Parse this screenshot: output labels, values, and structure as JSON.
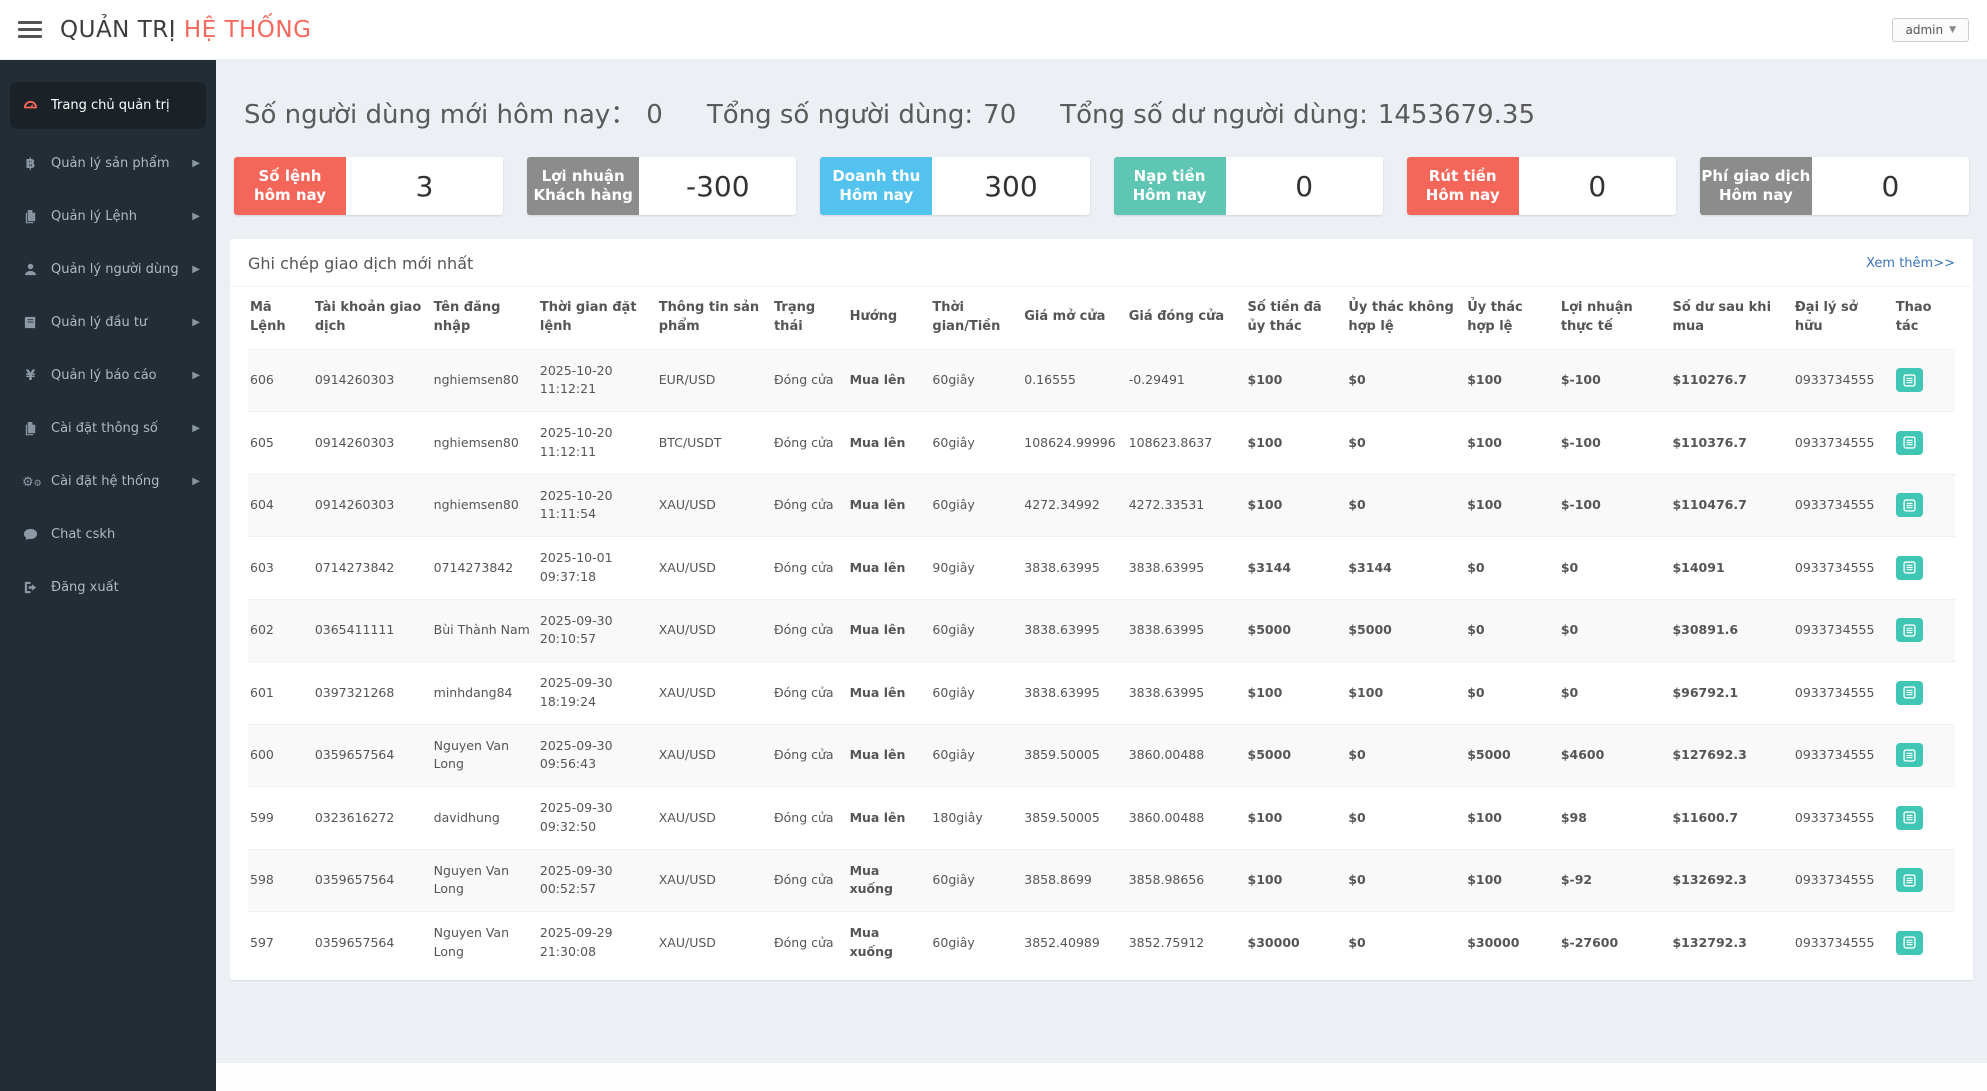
{
  "header": {
    "title_primary": "QUẢN TRỊ",
    "title_secondary": "HỆ THỐNG",
    "user_label": "admin"
  },
  "sidebar": {
    "items": [
      {
        "label": "Trang chủ quản trị",
        "icon": "dashboard-icon",
        "active": true,
        "arrow": false
      },
      {
        "label": "Quản lý sản phẩm",
        "icon": "bitcoin-icon",
        "active": false,
        "arrow": true
      },
      {
        "label": "Quản lý Lệnh",
        "icon": "files-icon",
        "active": false,
        "arrow": true
      },
      {
        "label": "Quản lý người dùng",
        "icon": "user-icon",
        "active": false,
        "arrow": true
      },
      {
        "label": "Quản lý đầu tư",
        "icon": "book-icon",
        "active": false,
        "arrow": true
      },
      {
        "label": "Quản lý báo cáo",
        "icon": "yen-icon",
        "active": false,
        "arrow": true
      },
      {
        "label": "Cài đặt thông số",
        "icon": "files-icon",
        "active": false,
        "arrow": true
      },
      {
        "label": "Cài đặt hệ thống",
        "icon": "gears-icon",
        "active": false,
        "arrow": true
      },
      {
        "label": "Chat cskh",
        "icon": "chat-icon",
        "active": false,
        "arrow": false
      },
      {
        "label": "Đăng xuất",
        "icon": "logout-icon",
        "active": false,
        "arrow": false
      }
    ]
  },
  "summary": [
    {
      "label": "Số người dùng mới hôm nay：",
      "value": "0"
    },
    {
      "label": "Tổng số người dùng:",
      "value": "70"
    },
    {
      "label": "Tổng số dư người dùng:",
      "value": "1453679.35"
    }
  ],
  "stat_cards": [
    {
      "line1": "Số lệnh",
      "line2": "hôm nay",
      "value": "3",
      "color": "#f4655a"
    },
    {
      "line1": "Lợi nhuận",
      "line2": "Khách hàng",
      "value": "-300",
      "color": "#8c8c8c"
    },
    {
      "line1": "Doanh thu",
      "line2": "Hôm nay",
      "value": "300",
      "color": "#54c2ee"
    },
    {
      "line1": "Nạp tiền",
      "line2": "Hôm nay",
      "value": "0",
      "color": "#5fc6b3"
    },
    {
      "line1": "Rút tiền",
      "line2": "Hôm nay",
      "value": "0",
      "color": "#f4655a"
    },
    {
      "line1": "Phí giao dịch",
      "line2": "Hôm nay",
      "value": "0",
      "color": "#8c8c8c"
    }
  ],
  "panel": {
    "title": "Ghi chép giao dịch mới nhất",
    "more_link": "Xem thêm>>"
  },
  "table": {
    "columns": [
      "Mã Lệnh",
      "Tài khoản giao dịch",
      "Tên đăng nhập",
      "Thời gian đặt lệnh",
      "Thông tin sản phẩm",
      "Trạng thái",
      "Hướng",
      "Thời gian/Tiền",
      "Giá mở cửa",
      "Giá đóng cửa",
      "Số tiền đã ủy thác",
      "Ủy thác không hợp lệ",
      "Ủy thác hợp lệ",
      "Lợi nhuận thực tế",
      "Số dư sau khi mua",
      "Đại lý sở hữu",
      "Thao tác"
    ],
    "rows": [
      {
        "id": "606",
        "account": "0914260303",
        "username": "nghiemsen80",
        "time": "2025-10-20 11:12:21",
        "product": "EUR/USD",
        "status": "Đóng cửa",
        "direction": "Mua lên",
        "dir": "up",
        "duration": "60giây",
        "open": "0.16555",
        "close": "-0.29491",
        "close_color": "green",
        "amount": "$100",
        "invalid": "$0",
        "valid": "$100",
        "profit": "$-100",
        "profit_color": "green",
        "balance": "$110276.7",
        "agent": "0933734555"
      },
      {
        "id": "605",
        "account": "0914260303",
        "username": "nghiemsen80",
        "time": "2025-10-20 11:12:11",
        "product": "BTC/USDT",
        "status": "Đóng cửa",
        "direction": "Mua lên",
        "dir": "up",
        "duration": "60giây",
        "open": "108624.99996",
        "close": "108623.8637",
        "close_color": "green",
        "amount": "$100",
        "invalid": "$0",
        "valid": "$100",
        "profit": "$-100",
        "profit_color": "green",
        "balance": "$110376.7",
        "agent": "0933734555"
      },
      {
        "id": "604",
        "account": "0914260303",
        "username": "nghiemsen80",
        "time": "2025-10-20 11:11:54",
        "product": "XAU/USD",
        "status": "Đóng cửa",
        "direction": "Mua lên",
        "dir": "up",
        "duration": "60giây",
        "open": "4272.34992",
        "close": "4272.33531",
        "close_color": "green",
        "amount": "$100",
        "invalid": "$0",
        "valid": "$100",
        "profit": "$-100",
        "profit_color": "green",
        "balance": "$110476.7",
        "agent": "0933734555"
      },
      {
        "id": "603",
        "account": "0714273842",
        "username": "0714273842",
        "time": "2025-10-01 09:37:18",
        "product": "XAU/USD",
        "status": "Đóng cửa",
        "direction": "Mua lên",
        "dir": "up",
        "duration": "90giây",
        "open": "3838.63995",
        "close": "3838.63995",
        "close_color": "red",
        "amount": "$3144",
        "invalid": "$3144",
        "valid": "$0",
        "profit": "$0",
        "profit_color": "green",
        "balance": "$14091",
        "agent": "0933734555"
      },
      {
        "id": "602",
        "account": "0365411111",
        "username": "Bùi Thành Nam",
        "time": "2025-09-30 20:10:57",
        "product": "XAU/USD",
        "status": "Đóng cửa",
        "direction": "Mua lên",
        "dir": "up",
        "duration": "60giây",
        "open": "3838.63995",
        "close": "3838.63995",
        "close_color": "red",
        "amount": "$5000",
        "invalid": "$5000",
        "valid": "$0",
        "profit": "$0",
        "profit_color": "green",
        "balance": "$30891.6",
        "agent": "0933734555"
      },
      {
        "id": "601",
        "account": "0397321268",
        "username": "minhdang84",
        "time": "2025-09-30 18:19:24",
        "product": "XAU/USD",
        "status": "Đóng cửa",
        "direction": "Mua lên",
        "dir": "up",
        "duration": "60giây",
        "open": "3838.63995",
        "close": "3838.63995",
        "close_color": "red",
        "amount": "$100",
        "invalid": "$100",
        "valid": "$0",
        "profit": "$0",
        "profit_color": "green",
        "balance": "$96792.1",
        "agent": "0933734555"
      },
      {
        "id": "600",
        "account": "0359657564",
        "username": "Nguyen Van Long",
        "time": "2025-09-30 09:56:43",
        "product": "XAU/USD",
        "status": "Đóng cửa",
        "direction": "Mua lên",
        "dir": "up",
        "duration": "60giây",
        "open": "3859.50005",
        "close": "3860.00488",
        "close_color": "red",
        "amount": "$5000",
        "invalid": "$0",
        "valid": "$5000",
        "profit": "$4600",
        "profit_color": "red",
        "balance": "$127692.3",
        "agent": "0933734555"
      },
      {
        "id": "599",
        "account": "0323616272",
        "username": "davidhung",
        "time": "2025-09-30 09:32:50",
        "product": "XAU/USD",
        "status": "Đóng cửa",
        "direction": "Mua lên",
        "dir": "up",
        "duration": "180giây",
        "open": "3859.50005",
        "close": "3860.00488",
        "close_color": "red",
        "amount": "$100",
        "invalid": "$0",
        "valid": "$100",
        "profit": "$98",
        "profit_color": "red",
        "balance": "$11600.7",
        "agent": "0933734555"
      },
      {
        "id": "598",
        "account": "0359657564",
        "username": "Nguyen Van Long",
        "time": "2025-09-30 00:52:57",
        "product": "XAU/USD",
        "status": "Đóng cửa",
        "direction": "Mua xuống",
        "dir": "down",
        "duration": "60giây",
        "open": "3858.8699",
        "close": "3858.98656",
        "close_color": "red",
        "amount": "$100",
        "invalid": "$0",
        "valid": "$100",
        "profit": "$-92",
        "profit_color": "green",
        "balance": "$132692.3",
        "agent": "0933734555"
      },
      {
        "id": "597",
        "account": "0359657564",
        "username": "Nguyen Van Long",
        "time": "2025-09-29 21:30:08",
        "product": "XAU/USD",
        "status": "Đóng cửa",
        "direction": "Mua xuống",
        "dir": "down",
        "duration": "60giây",
        "open": "3852.40989",
        "close": "3852.75912",
        "close_color": "red",
        "amount": "$30000",
        "invalid": "$0",
        "valid": "$30000",
        "profit": "$-27600",
        "profit_color": "green",
        "balance": "$132792.3",
        "agent": "0933734555"
      }
    ]
  }
}
